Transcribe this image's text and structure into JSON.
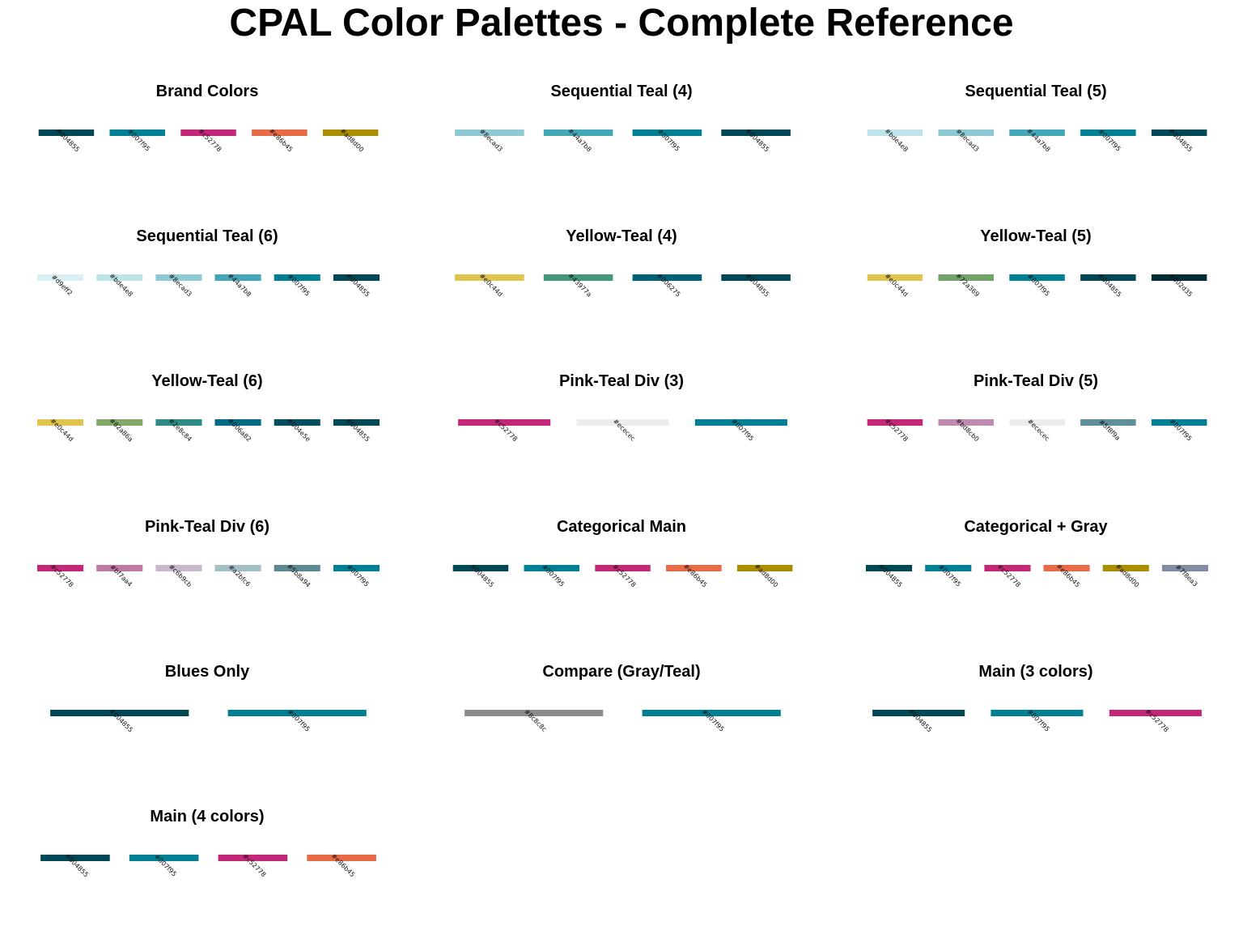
{
  "title": "CPAL Color Palettes - Complete Reference",
  "chart_data": [
    {
      "type": "bar",
      "title": "Brand Colors",
      "colors": [
        "#004855",
        "#007f95",
        "#c52778",
        "#e86b45",
        "#ad8d00"
      ],
      "values": [
        1,
        1,
        1,
        1,
        1
      ]
    },
    {
      "type": "bar",
      "title": "Sequential Teal (4)",
      "colors": [
        "#8ecad3",
        "#44a7b8",
        "#007f95",
        "#004855"
      ],
      "values": [
        1,
        1,
        1,
        1
      ]
    },
    {
      "type": "bar",
      "title": "Sequential Teal (5)",
      "colors": [
        "#bde4e8",
        "#8ecad3",
        "#44a7b8",
        "#007f95",
        "#004855"
      ],
      "values": [
        1,
        1,
        1,
        1,
        1
      ]
    },
    {
      "type": "bar",
      "title": "Sequential Teal (6)",
      "colors": [
        "#d9eff2",
        "#bde4e8",
        "#8ecad3",
        "#44a7b8",
        "#007f95",
        "#004855"
      ],
      "values": [
        1,
        1,
        1,
        1,
        1,
        1
      ]
    },
    {
      "type": "bar",
      "title": "Yellow-Teal (4)",
      "colors": [
        "#e0c44d",
        "#43977a",
        "#006275",
        "#004855"
      ],
      "values": [
        1,
        1,
        1,
        1
      ]
    },
    {
      "type": "bar",
      "title": "Yellow-Teal (5)",
      "colors": [
        "#e0c44d",
        "#72a369",
        "#007f95",
        "#004855",
        "#002d35"
      ],
      "values": [
        1,
        1,
        1,
        1,
        1
      ]
    },
    {
      "type": "bar",
      "title": "Yellow-Teal (6)",
      "colors": [
        "#e0c44d",
        "#82a86a",
        "#2e8c84",
        "#006a82",
        "#004e5e",
        "#004855"
      ],
      "values": [
        1,
        1,
        1,
        1,
        1,
        1
      ]
    },
    {
      "type": "bar",
      "title": "Pink-Teal Div (3)",
      "colors": [
        "#c52778",
        "#ececec",
        "#007f95"
      ],
      "values": [
        1,
        1,
        1
      ]
    },
    {
      "type": "bar",
      "title": "Pink-Teal Div (5)",
      "colors": [
        "#c52778",
        "#bd8cb0",
        "#ececec",
        "#5f8f9a",
        "#007f95"
      ],
      "values": [
        1,
        1,
        1,
        1,
        1
      ]
    },
    {
      "type": "bar",
      "title": "Pink-Teal Div (6)",
      "colors": [
        "#c52778",
        "#bf7aa4",
        "#c6b9cb",
        "#a2bfc6",
        "#5b8a94",
        "#007f95"
      ],
      "values": [
        1,
        1,
        1,
        1,
        1,
        1
      ]
    },
    {
      "type": "bar",
      "title": "Categorical Main",
      "colors": [
        "#004855",
        "#007f95",
        "#c52778",
        "#e86b45",
        "#ad8d00"
      ],
      "values": [
        1,
        1,
        1,
        1,
        1
      ]
    },
    {
      "type": "bar",
      "title": "Categorical + Gray",
      "colors": [
        "#004855",
        "#007f95",
        "#c52778",
        "#e86b45",
        "#ad8d00",
        "#7f8ea3"
      ],
      "values": [
        1,
        1,
        1,
        1,
        1,
        1
      ]
    },
    {
      "type": "bar",
      "title": "Blues Only",
      "colors": [
        "#004855",
        "#007f95"
      ],
      "values": [
        1,
        1
      ]
    },
    {
      "type": "bar",
      "title": "Compare (Gray/Teal)",
      "colors": [
        "#8c8c8c",
        "#007f95"
      ],
      "values": [
        1,
        1
      ]
    },
    {
      "type": "bar",
      "title": "Main (3 colors)",
      "colors": [
        "#004855",
        "#007f95",
        "#c52778"
      ],
      "values": [
        1,
        1,
        1
      ]
    },
    {
      "type": "bar",
      "title": "Main (4 colors)",
      "colors": [
        "#004855",
        "#007f95",
        "#c52778",
        "#e86b45"
      ],
      "values": [
        1,
        1,
        1,
        1
      ]
    }
  ]
}
